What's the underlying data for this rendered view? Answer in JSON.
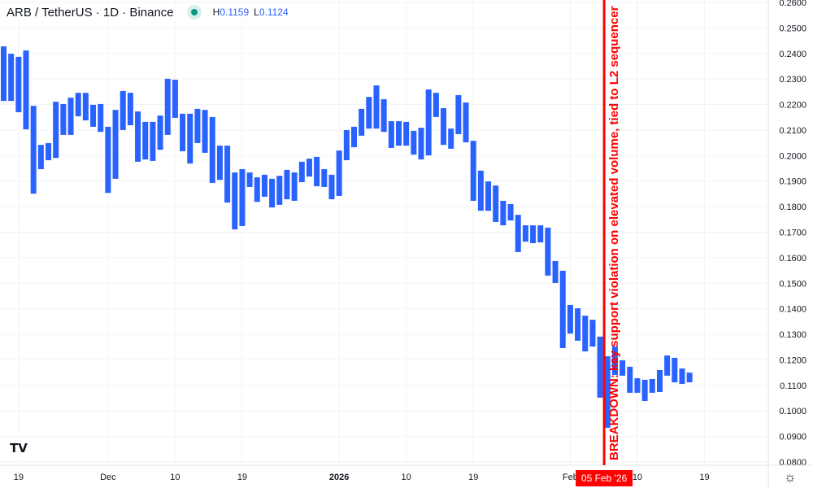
{
  "header": {
    "symbol": "ARB / TetherUS · 1D · Binance",
    "status_color": "#089981",
    "high_label": "H",
    "high_value": "0.1159",
    "low_label": "L",
    "low_value": "0.1124"
  },
  "annotation": {
    "text": "BREAKDOWN: key support violation on elevated volume, tied to L2 sequencer",
    "date_label": "05 Feb '26",
    "color": "#ff0000"
  },
  "chart_data": {
    "type": "bar",
    "style": "open-close bars (body range only)",
    "bar_color": "#2962ff",
    "ylim": [
      0.08,
      0.26
    ],
    "y_ticks": [
      "0.2600",
      "0.2500",
      "0.2400",
      "0.2300",
      "0.2200",
      "0.2100",
      "0.2000",
      "0.1900",
      "0.1800",
      "0.1700",
      "0.1600",
      "0.1500",
      "0.1400",
      "0.1300",
      "0.1200",
      "0.1100",
      "0.1000",
      "0.0900",
      "0.0800"
    ],
    "x_ticks": [
      {
        "label": "19",
        "bar": 2
      },
      {
        "label": "Dec",
        "bar": 14
      },
      {
        "label": "10",
        "bar": 23
      },
      {
        "label": "19",
        "bar": 32
      },
      {
        "label": "2026",
        "bar": 45,
        "bold": true
      },
      {
        "label": "10",
        "bar": 54
      },
      {
        "label": "19",
        "bar": 63
      },
      {
        "label": "Feb",
        "bar": 76
      },
      {
        "label": "10",
        "bar": 85
      },
      {
        "label": "19",
        "bar": 94
      }
    ],
    "annotation_bar": 80,
    "grid": true,
    "bars": [
      [
        0.2428,
        0.2214
      ],
      [
        0.2399,
        0.2214
      ],
      [
        0.2387,
        0.217
      ],
      [
        0.2412,
        0.2103
      ],
      [
        0.2195,
        0.1851
      ],
      [
        0.2042,
        0.1947
      ],
      [
        0.2049,
        0.1982
      ],
      [
        0.2211,
        0.1991
      ],
      [
        0.2202,
        0.2081
      ],
      [
        0.2227,
        0.2081
      ],
      [
        0.2246,
        0.2154
      ],
      [
        0.2246,
        0.2138
      ],
      [
        0.2199,
        0.2113
      ],
      [
        0.2202,
        0.2093
      ],
      [
        0.2113,
        0.1854
      ],
      [
        0.2179,
        0.1909
      ],
      [
        0.2253,
        0.21
      ],
      [
        0.2246,
        0.2119
      ],
      [
        0.2173,
        0.1976
      ],
      [
        0.2132,
        0.1985
      ],
      [
        0.2132,
        0.1979
      ],
      [
        0.2157,
        0.2023
      ],
      [
        0.2301,
        0.2081
      ],
      [
        0.2297,
        0.2148
      ],
      [
        0.2164,
        0.2017
      ],
      [
        0.2164,
        0.1969
      ],
      [
        0.2183,
        0.2049
      ],
      [
        0.2179,
        0.2011
      ],
      [
        0.2151,
        0.1893
      ],
      [
        0.2039,
        0.1905
      ],
      [
        0.2039,
        0.1816
      ],
      [
        0.1934,
        0.1711
      ],
      [
        0.1947,
        0.1724
      ],
      [
        0.1934,
        0.1877
      ],
      [
        0.1915,
        0.1819
      ],
      [
        0.1925,
        0.1839
      ],
      [
        0.1909,
        0.1797
      ],
      [
        0.1921,
        0.1807
      ],
      [
        0.1944,
        0.1829
      ],
      [
        0.1934,
        0.1823
      ],
      [
        0.1976,
        0.1896
      ],
      [
        0.1988,
        0.1918
      ],
      [
        0.1995,
        0.188
      ],
      [
        0.1947,
        0.1877
      ],
      [
        0.1925,
        0.1829
      ],
      [
        0.202,
        0.1842
      ],
      [
        0.21,
        0.1982
      ],
      [
        0.2113,
        0.2033
      ],
      [
        0.2183,
        0.2078
      ],
      [
        0.223,
        0.2106
      ],
      [
        0.2275,
        0.2106
      ],
      [
        0.2221,
        0.2093
      ],
      [
        0.2135,
        0.203
      ],
      [
        0.2135,
        0.2039
      ],
      [
        0.2132,
        0.2039
      ],
      [
        0.2097,
        0.2004
      ],
      [
        0.2109,
        0.1985
      ],
      [
        0.2259,
        0.2001
      ],
      [
        0.2246,
        0.2151
      ],
      [
        0.2186,
        0.2042
      ],
      [
        0.2106,
        0.2027
      ],
      [
        0.2237,
        0.2084
      ],
      [
        0.2208,
        0.2052
      ],
      [
        0.2058,
        0.1823
      ],
      [
        0.1941,
        0.1784
      ],
      [
        0.1899,
        0.1784
      ],
      [
        0.1883,
        0.174
      ],
      [
        0.1823,
        0.1727
      ],
      [
        0.181,
        0.1746
      ],
      [
        0.1768,
        0.1622
      ],
      [
        0.1727,
        0.1663
      ],
      [
        0.1727,
        0.1657
      ],
      [
        0.1727,
        0.166
      ],
      [
        0.1718,
        0.153
      ],
      [
        0.1587,
        0.1501
      ],
      [
        0.1549,
        0.1246
      ],
      [
        0.1415,
        0.1303
      ],
      [
        0.1402,
        0.1275
      ],
      [
        0.1373,
        0.1233
      ],
      [
        0.1357,
        0.1252
      ],
      [
        0.1291,
        0.1052
      ],
      [
        0.1214,
        0.0934
      ],
      [
        0.1252,
        0.1141
      ],
      [
        0.1198,
        0.1138
      ],
      [
        0.1173,
        0.1071
      ],
      [
        0.1128,
        0.1071
      ],
      [
        0.1122,
        0.1039
      ],
      [
        0.1125,
        0.1071
      ],
      [
        0.116,
        0.1074
      ],
      [
        0.1217,
        0.1138
      ],
      [
        0.1208,
        0.1112
      ],
      [
        0.1166,
        0.1106
      ],
      [
        0.115,
        0.1112
      ]
    ]
  }
}
